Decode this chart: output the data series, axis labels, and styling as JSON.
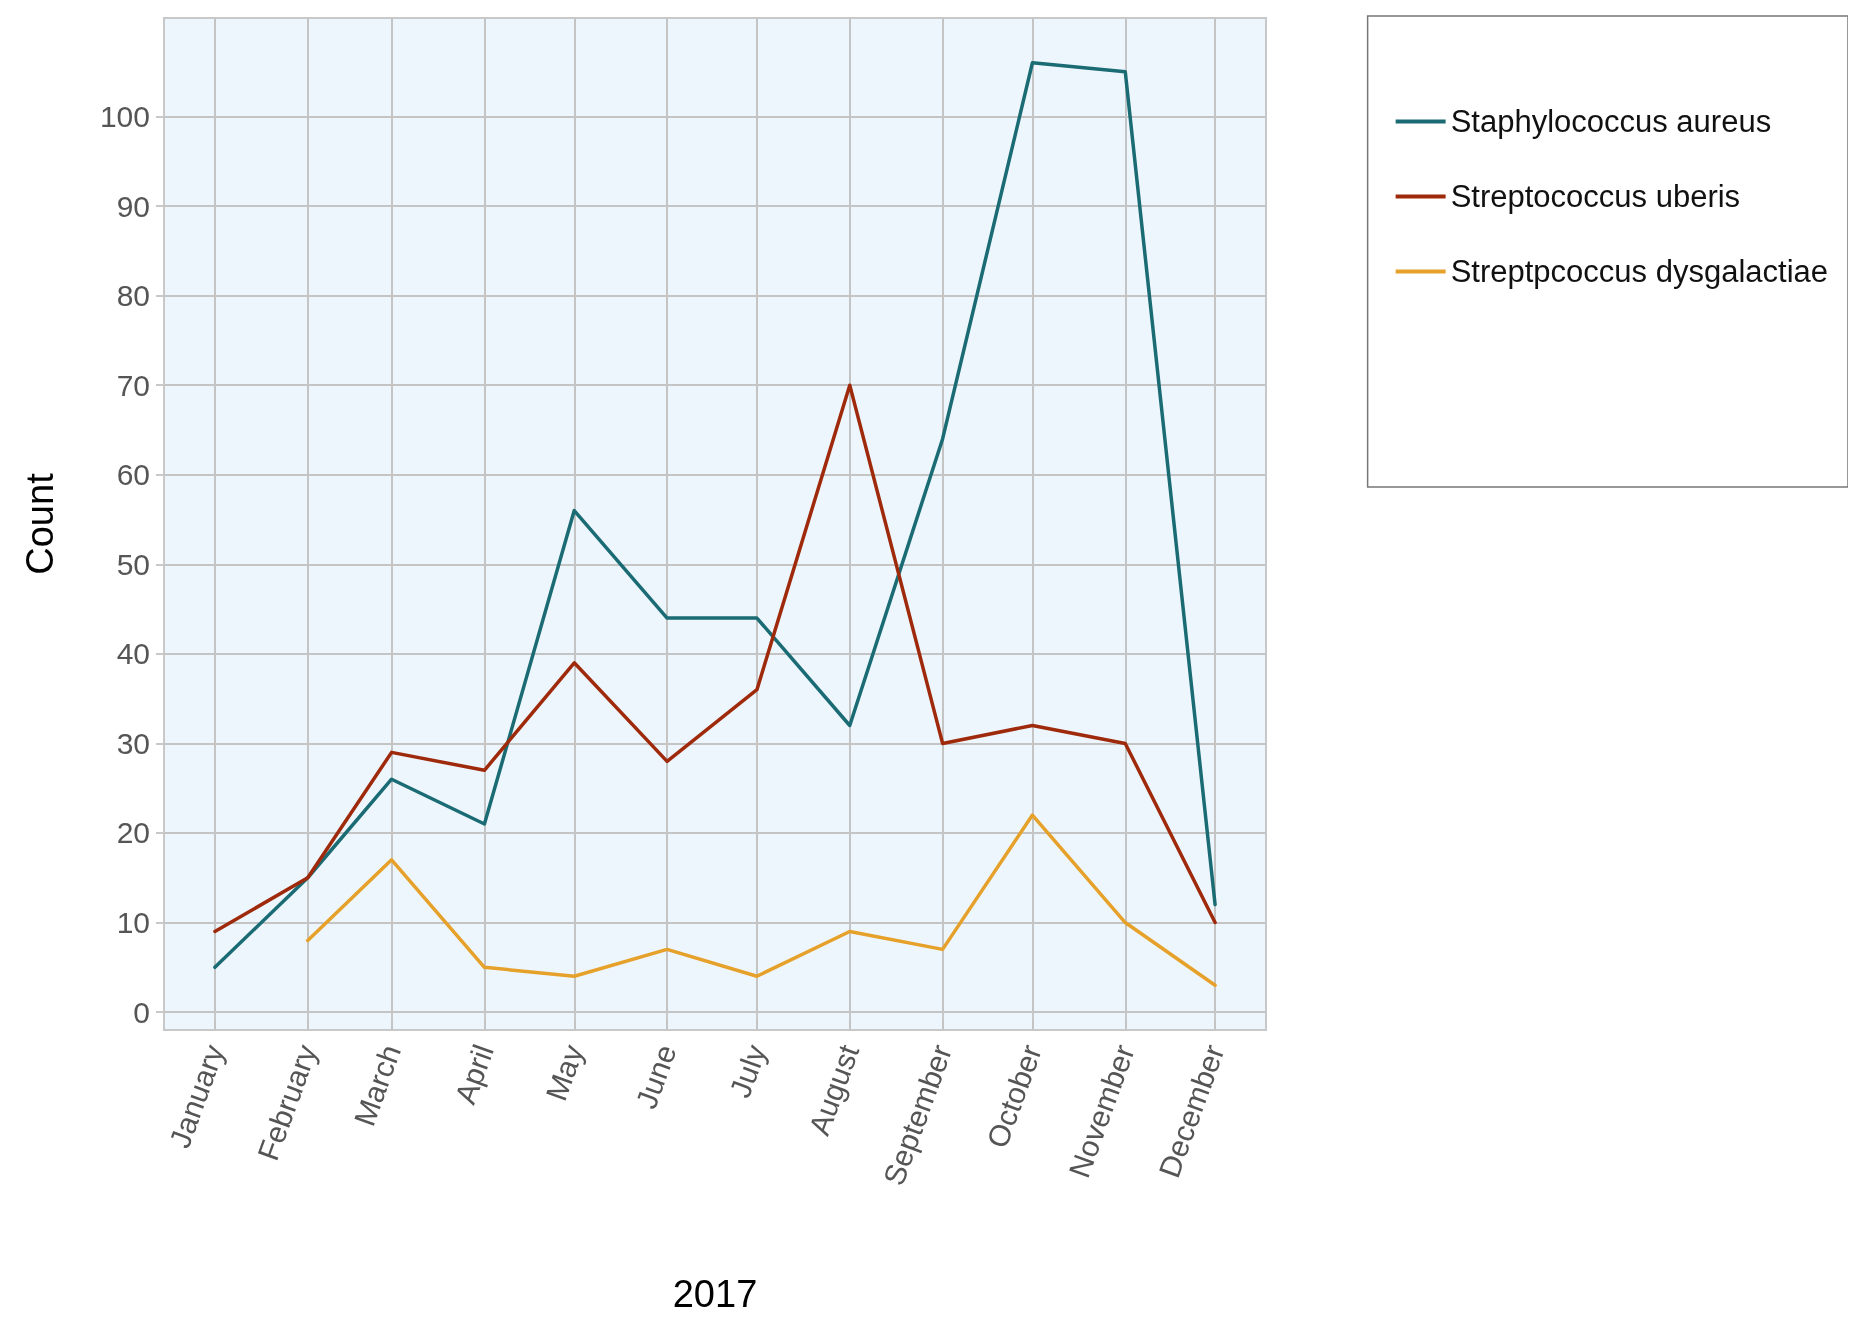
{
  "chart_data": {
    "type": "line",
    "xlabel": "2017",
    "ylabel": "Count",
    "x": [
      "2017-01-01",
      "2017-02-01",
      "2017-03-01",
      "2017-04-01",
      "2017-05-01",
      "2017-06-01",
      "2017-07-01",
      "2017-08-01",
      "2017-09-01",
      "2017-10-01",
      "2017-11-01",
      "2017-12-01"
    ],
    "xlim": [
      "2016-12-15",
      "2017-12-18"
    ],
    "xticks": [
      {
        "value": "2017-01-01",
        "label": "January"
      },
      {
        "value": "2017-02-01",
        "label": "February"
      },
      {
        "value": "2017-03-01",
        "label": "March"
      },
      {
        "value": "2017-04-01",
        "label": "April"
      },
      {
        "value": "2017-05-01",
        "label": "May"
      },
      {
        "value": "2017-06-01",
        "label": "June"
      },
      {
        "value": "2017-07-01",
        "label": "July"
      },
      {
        "value": "2017-08-01",
        "label": "August"
      },
      {
        "value": "2017-09-01",
        "label": "September"
      },
      {
        "value": "2017-10-01",
        "label": "October"
      },
      {
        "value": "2017-11-01",
        "label": "November"
      },
      {
        "value": "2017-12-01",
        "label": "December"
      }
    ],
    "ylim": [
      -2,
      111
    ],
    "yticks": [
      0,
      10,
      20,
      30,
      40,
      50,
      60,
      70,
      80,
      90,
      100
    ],
    "grid": true,
    "legend": "top right",
    "marker": "none",
    "line_style": "solid",
    "series": [
      {
        "name": "Staphylococcus aureus",
        "color": "#1a6b73",
        "values": [
          5,
          15,
          26,
          21,
          56,
          44,
          44,
          32,
          64,
          106,
          105,
          12
        ]
      },
      {
        "name": "Streptococcus uberis",
        "color": "#9e2a0b",
        "values": [
          9,
          15,
          29,
          27,
          39,
          28,
          36,
          70,
          30,
          32,
          30,
          10
        ]
      },
      {
        "name": "Streptpcoccus dysgalactiae",
        "color": "#e6a12a",
        "values": [
          null,
          8,
          17,
          5,
          4,
          7,
          4,
          9,
          7,
          22,
          10,
          3
        ]
      }
    ]
  }
}
